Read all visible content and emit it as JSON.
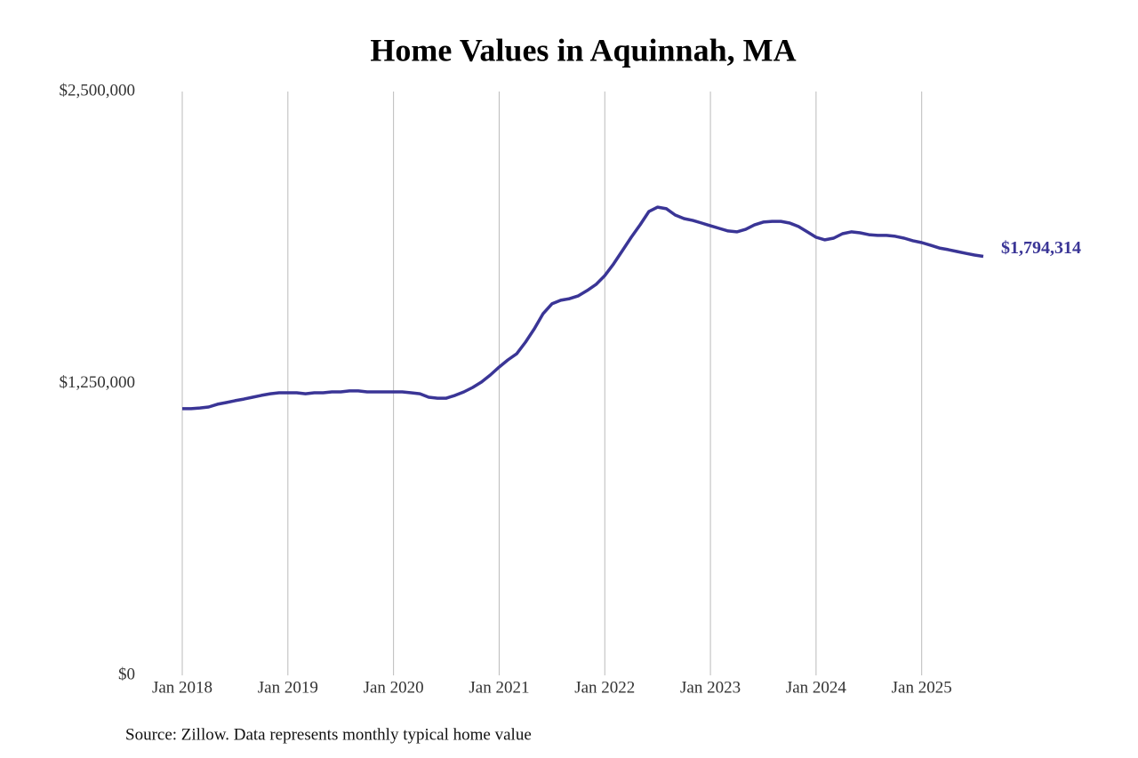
{
  "chart_data": {
    "type": "line",
    "title": "Home Values in Aquinnah, MA",
    "source": "Source: Zillow. Data represents monthly typical home value",
    "x": [
      "2018-01",
      "2018-02",
      "2018-03",
      "2018-04",
      "2018-05",
      "2018-06",
      "2018-07",
      "2018-08",
      "2018-09",
      "2018-10",
      "2018-11",
      "2018-12",
      "2019-01",
      "2019-02",
      "2019-03",
      "2019-04",
      "2019-05",
      "2019-06",
      "2019-07",
      "2019-08",
      "2019-09",
      "2019-10",
      "2019-11",
      "2019-12",
      "2020-01",
      "2020-02",
      "2020-03",
      "2020-04",
      "2020-05",
      "2020-06",
      "2020-07",
      "2020-08",
      "2020-09",
      "2020-10",
      "2020-11",
      "2020-12",
      "2021-01",
      "2021-02",
      "2021-03",
      "2021-04",
      "2021-05",
      "2021-06",
      "2021-07",
      "2021-08",
      "2021-09",
      "2021-10",
      "2021-11",
      "2021-12",
      "2022-01",
      "2022-02",
      "2022-03",
      "2022-04",
      "2022-05",
      "2022-06",
      "2022-07",
      "2022-08",
      "2022-09",
      "2022-10",
      "2022-11",
      "2022-12",
      "2023-01",
      "2023-02",
      "2023-03",
      "2023-04",
      "2023-05",
      "2023-06",
      "2023-07",
      "2023-08",
      "2023-09",
      "2023-10",
      "2023-11",
      "2023-12",
      "2024-01",
      "2024-02",
      "2024-03",
      "2024-04",
      "2024-05",
      "2024-06",
      "2024-07",
      "2024-08",
      "2024-09",
      "2024-10",
      "2024-11",
      "2024-12",
      "2025-01",
      "2025-02",
      "2025-03",
      "2025-04",
      "2025-05",
      "2025-06",
      "2025-07",
      "2025-08"
    ],
    "series": [
      {
        "color": "#3a3596",
        "values": [
          1142000,
          1142000,
          1145000,
          1149000,
          1161000,
          1168000,
          1176000,
          1183000,
          1191000,
          1199000,
          1206000,
          1210000,
          1210000,
          1210000,
          1206000,
          1210000,
          1210000,
          1214000,
          1214000,
          1218000,
          1218000,
          1214000,
          1214000,
          1214000,
          1214000,
          1214000,
          1210000,
          1206000,
          1191000,
          1187000,
          1187000,
          1199000,
          1214000,
          1233000,
          1256000,
          1286000,
          1320000,
          1351000,
          1377000,
          1427000,
          1484000,
          1549000,
          1591000,
          1606000,
          1613000,
          1625000,
          1648000,
          1674000,
          1712000,
          1762000,
          1819000,
          1876000,
          1929000,
          1986000,
          2005000,
          1998000,
          1971000,
          1956000,
          1948000,
          1937000,
          1925000,
          1914000,
          1903000,
          1899000,
          1910000,
          1929000,
          1941000,
          1944000,
          1944000,
          1937000,
          1922000,
          1899000,
          1876000,
          1865000,
          1872000,
          1891000,
          1899000,
          1895000,
          1887000,
          1884000,
          1884000,
          1880000,
          1872000,
          1861000,
          1853000,
          1842000,
          1830000,
          1823000,
          1815000,
          1807000,
          1800000,
          1794314
        ],
        "value_labels": [
          null,
          null,
          null,
          null,
          null,
          null,
          null,
          null,
          null,
          null,
          null,
          null,
          null,
          null,
          null,
          null,
          null,
          null,
          null,
          null,
          null,
          null,
          null,
          null,
          null,
          null,
          null,
          null,
          null,
          null,
          null,
          null,
          null,
          null,
          null,
          null,
          null,
          null,
          null,
          null,
          null,
          null,
          null,
          null,
          null,
          null,
          null,
          null,
          null,
          null,
          null,
          null,
          null,
          null,
          null,
          null,
          null,
          null,
          null,
          null,
          null,
          null,
          null,
          null,
          null,
          null,
          null,
          null,
          null,
          null,
          null,
          null,
          null,
          null,
          null,
          null,
          null,
          null,
          null,
          null,
          null,
          null,
          null,
          null,
          null,
          null,
          null,
          null,
          null,
          null,
          null,
          "$1,794,314"
        ]
      }
    ],
    "xlim": [
      "2018-01",
      "2025-08"
    ],
    "xticks": [
      {
        "value": "2018-01",
        "label": "Jan 2018"
      },
      {
        "value": "2019-01",
        "label": "Jan 2019"
      },
      {
        "value": "2020-01",
        "label": "Jan 2020"
      },
      {
        "value": "2021-01",
        "label": "Jan 2021"
      },
      {
        "value": "2022-01",
        "label": "Jan 2022"
      },
      {
        "value": "2023-01",
        "label": "Jan 2023"
      },
      {
        "value": "2024-01",
        "label": "Jan 2024"
      },
      {
        "value": "2025-01",
        "label": "Jan 2025"
      }
    ],
    "ylim": [
      0,
      2500000
    ],
    "yticks": [
      {
        "value": 0,
        "label": "$0"
      },
      {
        "value": 1250000,
        "label": "$1,250,000"
      },
      {
        "value": 2500000,
        "label": "$2,500,000"
      }
    ],
    "grid": "x"
  }
}
